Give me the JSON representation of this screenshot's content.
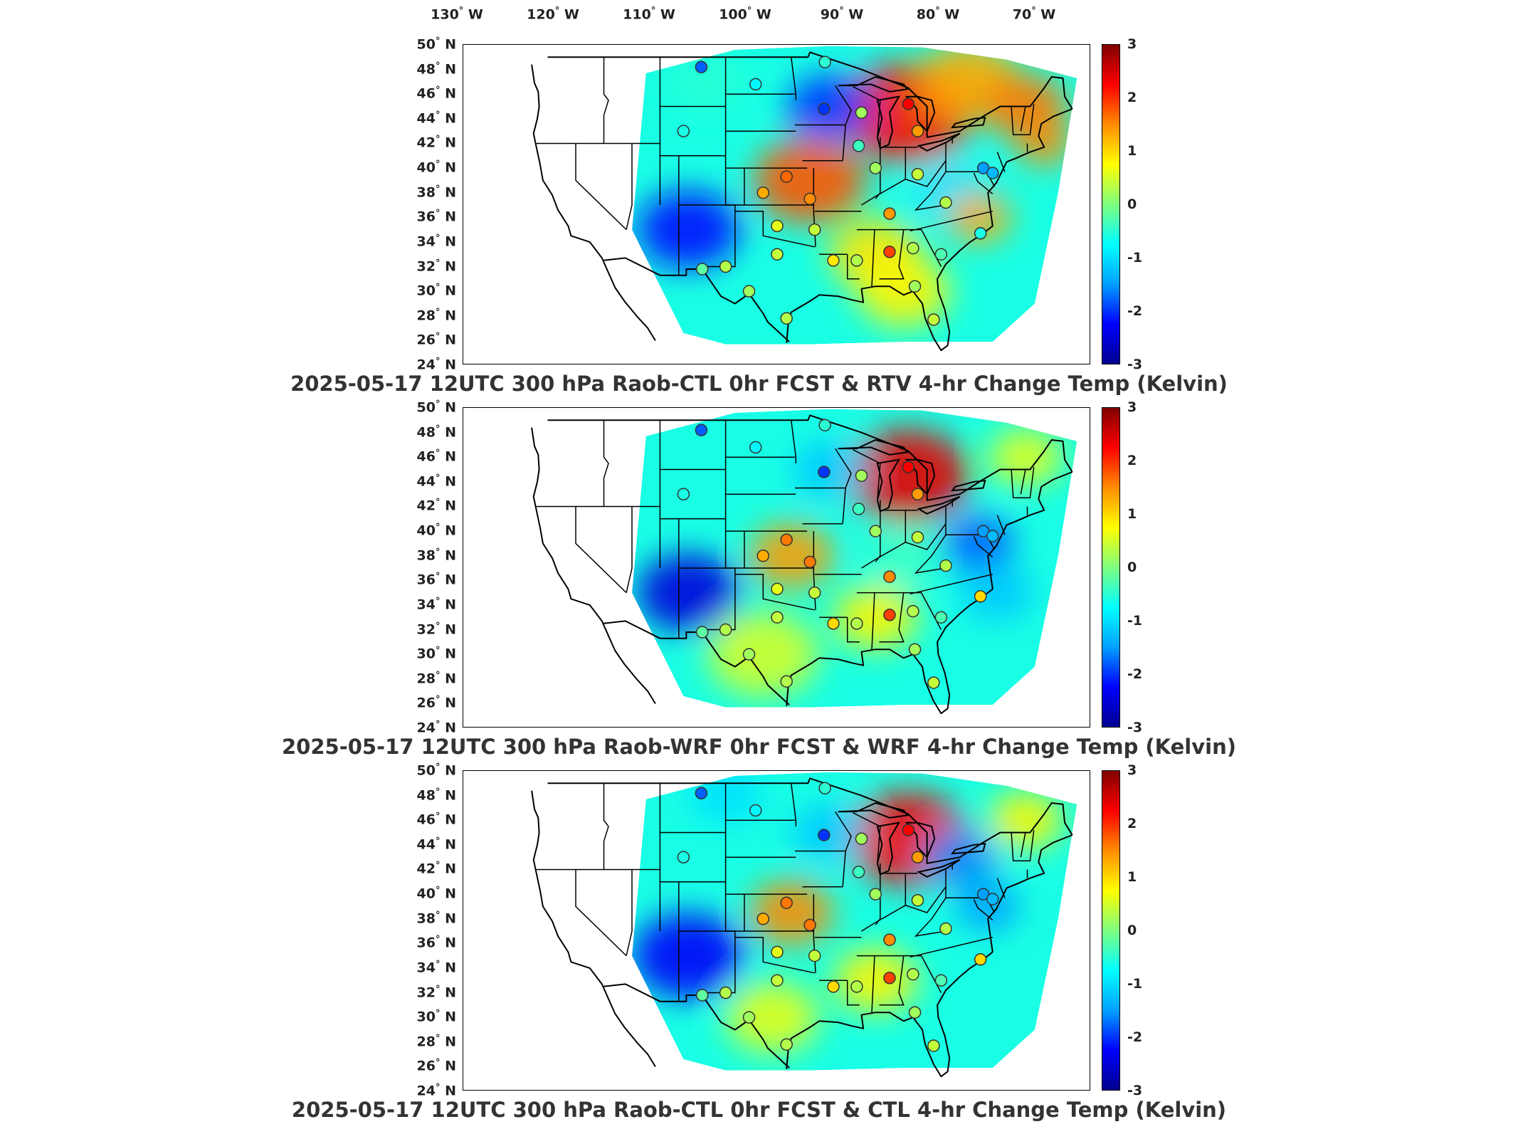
{
  "longitude_labels": [
    {
      "deg": "130",
      "dir": "W"
    },
    {
      "deg": "120",
      "dir": "W"
    },
    {
      "deg": "110",
      "dir": "W"
    },
    {
      "deg": "100",
      "dir": "W"
    },
    {
      "deg": "90",
      "dir": "W"
    },
    {
      "deg": "80",
      "dir": "W"
    },
    {
      "deg": "70",
      "dir": "W"
    }
  ],
  "latitude_labels": [
    {
      "deg": "50",
      "dir": "N"
    },
    {
      "deg": "48",
      "dir": "N"
    },
    {
      "deg": "46",
      "dir": "N"
    },
    {
      "deg": "44",
      "dir": "N"
    },
    {
      "deg": "42",
      "dir": "N"
    },
    {
      "deg": "40",
      "dir": "N"
    },
    {
      "deg": "38",
      "dir": "N"
    },
    {
      "deg": "36",
      "dir": "N"
    },
    {
      "deg": "34",
      "dir": "N"
    },
    {
      "deg": "32",
      "dir": "N"
    },
    {
      "deg": "30",
      "dir": "N"
    },
    {
      "deg": "28",
      "dir": "N"
    },
    {
      "deg": "26",
      "dir": "N"
    },
    {
      "deg": "24",
      "dir": "N"
    }
  ],
  "colorbar": {
    "ticks": [
      "3",
      "2",
      "1",
      "0",
      "-1",
      "-2",
      "-3"
    ],
    "min": -3,
    "max": 3,
    "colormap": "jet",
    "colors": [
      "#00008f",
      "#0000ff",
      "#00a0ff",
      "#00ffff",
      "#7fff7f",
      "#ffff00",
      "#ff8c00",
      "#ff0000",
      "#800000"
    ]
  },
  "panels": [
    {
      "title": "2025-05-17 12UTC 300 hPa Raob-CTL 0hr FCST & RTV 4-hr Change Temp (Kelvin)"
    },
    {
      "title": "2025-05-17 12UTC 300 hPa Raob-WRF 0hr FCST & WRF 4-hr Change Temp (Kelvin)"
    },
    {
      "title": "2025-05-17 12UTC 300 hPa Raob-CTL 0hr FCST & CTL 4-hr Change Temp (Kelvin)"
    }
  ],
  "map": {
    "type": "contour-fill-map",
    "region": "Contiguous United States",
    "lon_range": [
      -132,
      -65
    ],
    "lat_range": [
      24,
      50
    ],
    "variable": "Temp",
    "units": "Kelvin",
    "level": "300 hPa",
    "valid_time": "2025-05-17 12UTC",
    "raob_markers": "circles colored by value"
  }
}
